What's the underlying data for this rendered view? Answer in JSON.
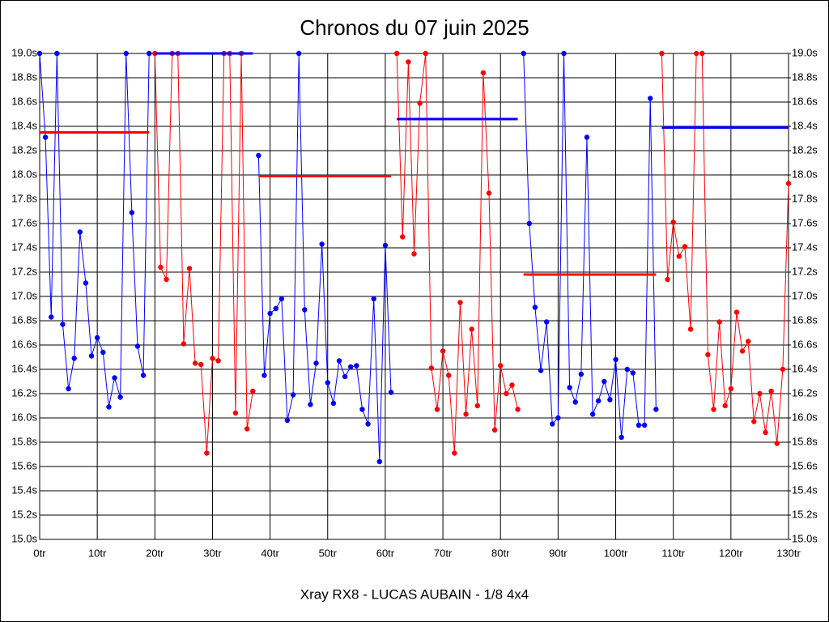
{
  "chart_data": {
    "type": "line",
    "title": "Chronos du 07 juin 2025",
    "x_label": "Xray RX8 - LUCAS AUBAIN - 1/8 4x4",
    "xlim": [
      0,
      130
    ],
    "xticks": [
      {
        "value": 0,
        "label": "0tr"
      },
      {
        "value": 10,
        "label": "10tr"
      },
      {
        "value": 20,
        "label": "20tr"
      },
      {
        "value": 30,
        "label": "30tr"
      },
      {
        "value": 40,
        "label": "40tr"
      },
      {
        "value": 50,
        "label": "50tr"
      },
      {
        "value": 60,
        "label": "60tr"
      },
      {
        "value": 70,
        "label": "70tr"
      },
      {
        "value": 80,
        "label": "80tr"
      },
      {
        "value": 90,
        "label": "90tr"
      },
      {
        "value": 100,
        "label": "100tr"
      },
      {
        "value": 110,
        "label": "110tr"
      },
      {
        "value": 120,
        "label": "120tr"
      },
      {
        "value": 130,
        "label": "130tr"
      }
    ],
    "ylim": [
      15.0,
      19.0
    ],
    "yticks": [
      {
        "value": 15.0,
        "label": "15.0s"
      },
      {
        "value": 15.2,
        "label": "15.2s"
      },
      {
        "value": 15.4,
        "label": "15.4s"
      },
      {
        "value": 15.6,
        "label": "15.6s"
      },
      {
        "value": 15.8,
        "label": "15.8s"
      },
      {
        "value": 16.0,
        "label": "16.0s"
      },
      {
        "value": 16.2,
        "label": "16.2s"
      },
      {
        "value": 16.4,
        "label": "16.4s"
      },
      {
        "value": 16.6,
        "label": "16.6s"
      },
      {
        "value": 16.8,
        "label": "16.8s"
      },
      {
        "value": 17.0,
        "label": "17.0s"
      },
      {
        "value": 17.2,
        "label": "17.2s"
      },
      {
        "value": 17.4,
        "label": "17.4s"
      },
      {
        "value": 17.6,
        "label": "17.6s"
      },
      {
        "value": 17.8,
        "label": "17.8s"
      },
      {
        "value": 18.0,
        "label": "18.0s"
      },
      {
        "value": 18.2,
        "label": "18.2s"
      },
      {
        "value": 18.4,
        "label": "18.4s"
      },
      {
        "value": 18.6,
        "label": "18.6s"
      },
      {
        "value": 18.8,
        "label": "18.8s"
      },
      {
        "value": 19.0,
        "label": "19.0s"
      }
    ],
    "y2lim": [
      15.0,
      19.0
    ],
    "y2ticks": [
      {
        "value": 15.0,
        "label": "15.0s"
      },
      {
        "value": 15.2,
        "label": "15.2s"
      },
      {
        "value": 15.4,
        "label": "15.4s"
      },
      {
        "value": 15.6,
        "label": "15.6s"
      },
      {
        "value": 15.8,
        "label": "15.8s"
      },
      {
        "value": 16.0,
        "label": "16.0s"
      },
      {
        "value": 16.2,
        "label": "16.2s"
      },
      {
        "value": 16.4,
        "label": "16.4s"
      },
      {
        "value": 16.6,
        "label": "16.6s"
      },
      {
        "value": 16.8,
        "label": "16.8s"
      },
      {
        "value": 17.0,
        "label": "17.0s"
      },
      {
        "value": 17.2,
        "label": "17.2s"
      },
      {
        "value": 17.4,
        "label": "17.4s"
      },
      {
        "value": 17.6,
        "label": "17.6s"
      },
      {
        "value": 17.8,
        "label": "17.8s"
      },
      {
        "value": 18.0,
        "label": "18.0s"
      },
      {
        "value": 18.2,
        "label": "18.2s"
      },
      {
        "value": 18.4,
        "label": "18.4s"
      },
      {
        "value": 18.6,
        "label": "18.6s"
      },
      {
        "value": 18.8,
        "label": "18.8s"
      },
      {
        "value": 19.0,
        "label": "19.0s"
      }
    ],
    "grid": true,
    "series": [
      {
        "color": "#0000ff",
        "x": [
          0,
          1,
          2,
          3,
          4,
          5,
          6,
          7,
          8,
          9,
          10,
          11,
          12,
          13,
          14,
          15,
          16,
          17,
          18,
          19
        ],
        "values": [
          19.0,
          18.31,
          16.83,
          19.0,
          16.77,
          16.24,
          16.49,
          17.53,
          17.11,
          16.51,
          16.66,
          16.54,
          16.09,
          16.33,
          16.17,
          19.0,
          17.69,
          16.59,
          16.35,
          19.0
        ]
      },
      {
        "color": "#ff0000",
        "x": [
          20,
          21,
          22,
          23,
          24,
          25,
          26,
          27,
          28,
          29,
          30,
          31,
          32,
          33,
          34,
          35,
          36,
          37
        ],
        "values": [
          19.0,
          17.24,
          17.14,
          19.0,
          19.0,
          16.61,
          17.23,
          16.45,
          16.44,
          15.71,
          16.49,
          16.47,
          19.0,
          19.0,
          16.04,
          19.0,
          15.91,
          16.22
        ]
      },
      {
        "color": "#0000ff",
        "x": [
          38,
          39,
          40,
          41,
          42,
          43,
          44,
          45,
          46,
          47,
          48,
          49,
          50,
          51,
          52,
          53,
          54,
          55,
          56,
          57,
          58,
          59,
          60,
          61
        ],
        "values": [
          18.16,
          16.35,
          16.86,
          16.9,
          16.98,
          15.98,
          16.19,
          19.0,
          16.89,
          16.11,
          16.45,
          17.43,
          16.29,
          16.12,
          16.47,
          16.34,
          16.42,
          16.43,
          16.07,
          15.95,
          16.98,
          15.64,
          17.42,
          16.21
        ]
      },
      {
        "color": "#ff0000",
        "x": [
          62,
          63,
          64,
          65,
          66,
          67,
          68,
          69,
          70,
          71,
          72,
          73,
          74,
          75,
          76,
          77,
          78,
          79,
          80,
          81,
          82,
          83
        ],
        "values": [
          19.0,
          17.49,
          18.93,
          17.35,
          18.59,
          19.0,
          16.41,
          16.07,
          16.55,
          16.35,
          15.71,
          16.95,
          16.03,
          16.73,
          16.1,
          18.84,
          17.85,
          15.9,
          16.43,
          16.2,
          16.27,
          16.07
        ]
      },
      {
        "color": "#0000ff",
        "x": [
          84,
          85,
          86,
          87,
          88,
          89,
          90,
          91,
          92,
          93,
          94,
          95,
          96,
          97,
          98,
          99,
          100,
          101,
          102,
          103,
          104,
          105,
          106,
          107
        ],
        "values": [
          19.0,
          17.6,
          16.91,
          16.39,
          16.79,
          15.95,
          16.0,
          19.0,
          16.25,
          16.13,
          16.36,
          18.31,
          16.03,
          16.14,
          16.3,
          16.15,
          16.48,
          15.84,
          16.4,
          16.37,
          15.94,
          15.94,
          18.63,
          16.07
        ]
      },
      {
        "color": "#ff0000",
        "x": [
          108,
          109,
          110,
          111,
          112,
          113,
          114,
          115,
          116,
          117,
          118,
          119,
          120,
          121,
          122,
          123,
          124,
          125,
          126,
          127,
          128,
          129,
          130
        ],
        "values": [
          19.0,
          17.14,
          17.61,
          17.33,
          17.41,
          16.73,
          19.0,
          19.0,
          16.52,
          16.07,
          16.79,
          16.1,
          16.24,
          16.87,
          16.55,
          16.63,
          15.97,
          16.2,
          15.88,
          16.22,
          15.79,
          16.4,
          17.93
        ]
      }
    ],
    "mean_lines": [
      {
        "color": "#ff0000",
        "x": [
          0,
          19
        ],
        "value": 18.35
      },
      {
        "color": "#0000ff",
        "x": [
          20,
          37
        ],
        "value": 19.0
      },
      {
        "color": "#ff0000",
        "x": [
          38,
          61
        ],
        "value": 17.99
      },
      {
        "color": "#0000ff",
        "x": [
          62,
          83
        ],
        "value": 18.46
      },
      {
        "color": "#ff0000",
        "x": [
          84,
          107
        ],
        "value": 17.18
      },
      {
        "color": "#0000ff",
        "x": [
          108,
          130
        ],
        "value": 18.39
      }
    ]
  }
}
